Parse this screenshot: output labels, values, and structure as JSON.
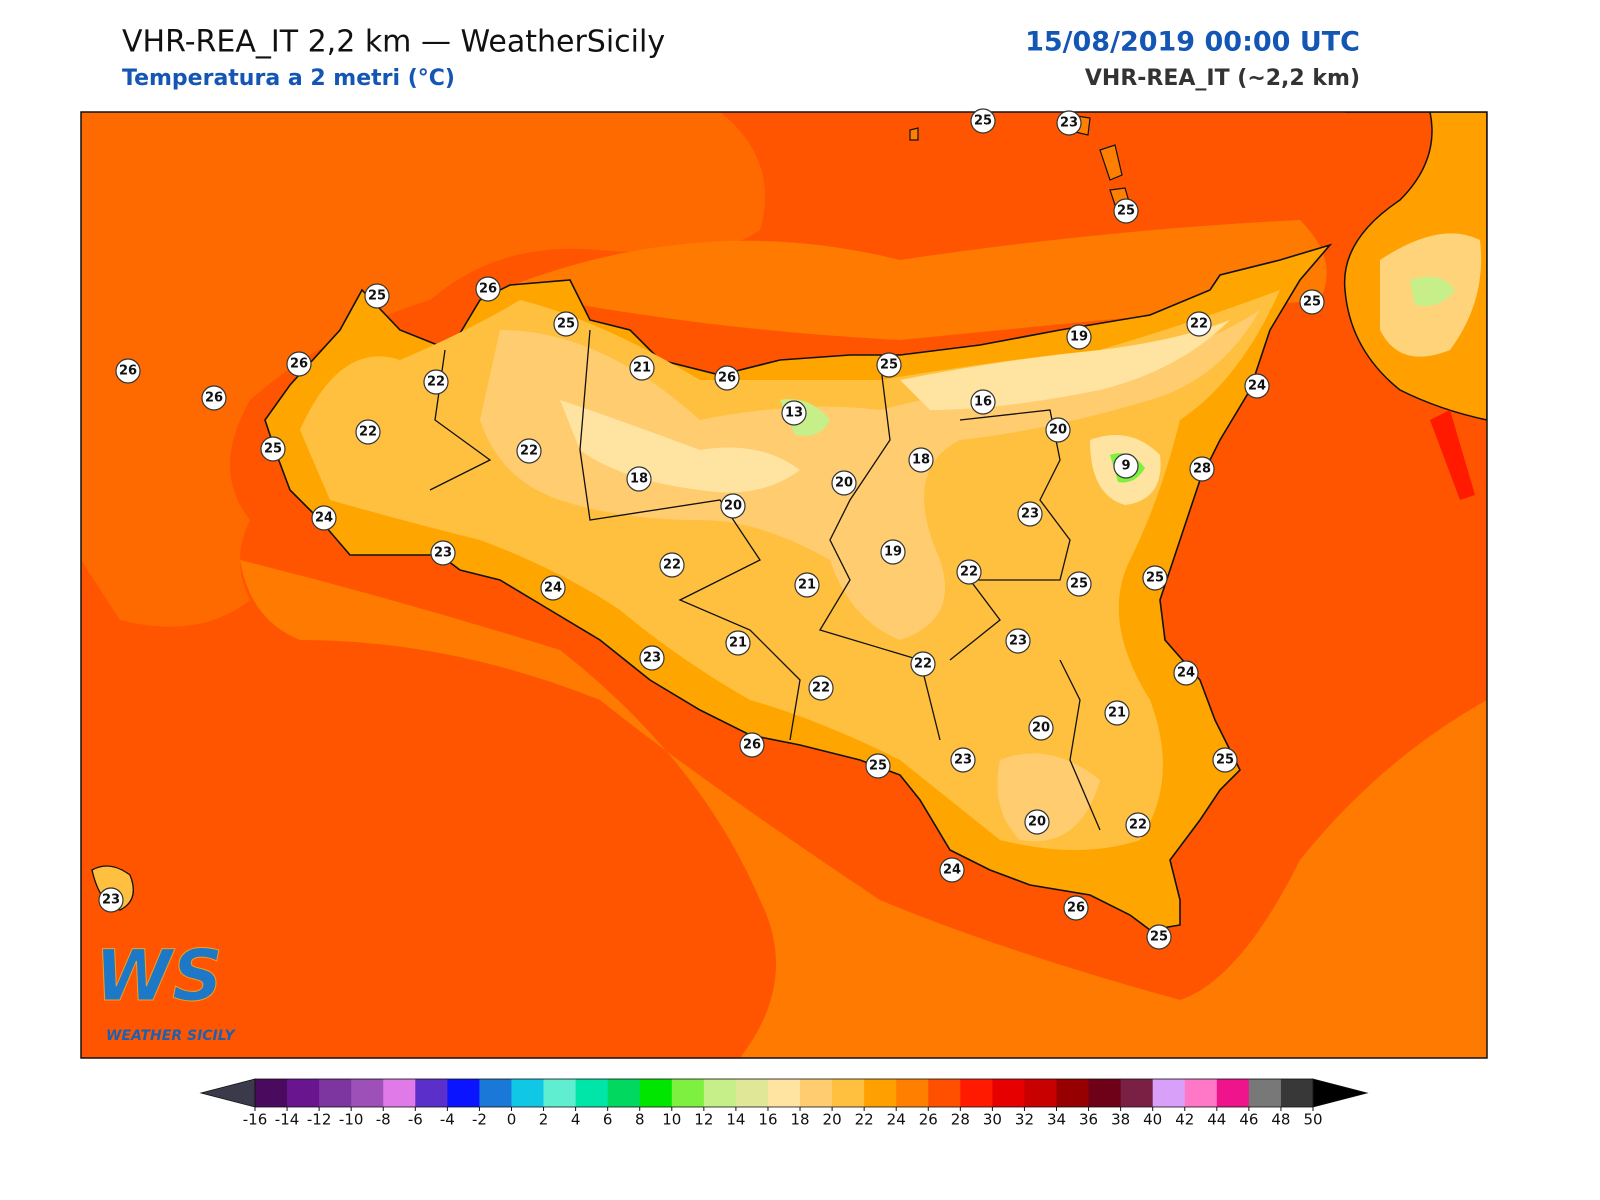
{
  "header": {
    "title": "VHR-REA_IT 2,2 km — WeatherSicily",
    "subtitle": "Temperatura a 2 metri (°C)",
    "datetime": "15/08/2019 00:00 UTC",
    "model": "VHR-REA_IT (~2,2 km)"
  },
  "logo": {
    "mark": "WS",
    "name": "WEATHER SICILY"
  },
  "stations": [
    {
      "value": 25
    },
    {
      "value": 23
    },
    {
      "value": 25
    },
    {
      "value": 25
    },
    {
      "value": 26
    },
    {
      "value": 25
    },
    {
      "value": 26
    },
    {
      "value": 26
    },
    {
      "value": 26
    },
    {
      "value": 22
    },
    {
      "value": 21
    },
    {
      "value": 26
    },
    {
      "value": 25
    },
    {
      "value": 19
    },
    {
      "value": 22
    },
    {
      "value": 25
    },
    {
      "value": 24
    },
    {
      "value": 13
    },
    {
      "value": 16
    },
    {
      "value": 20
    },
    {
      "value": 22
    },
    {
      "value": 25
    },
    {
      "value": 22
    },
    {
      "value": 18
    },
    {
      "value": 18
    },
    {
      "value": 20
    },
    {
      "value": 9
    },
    {
      "value": 28
    },
    {
      "value": 20
    },
    {
      "value": 23
    },
    {
      "value": 24
    },
    {
      "value": 23
    },
    {
      "value": 19
    },
    {
      "value": 22
    },
    {
      "value": 22
    },
    {
      "value": 25
    },
    {
      "value": 25
    },
    {
      "value": 24
    },
    {
      "value": 21
    },
    {
      "value": 23
    },
    {
      "value": 21
    },
    {
      "value": 23
    },
    {
      "value": 22
    },
    {
      "value": 24
    },
    {
      "value": 22
    },
    {
      "value": 21
    },
    {
      "value": 20
    },
    {
      "value": 26
    },
    {
      "value": 23
    },
    {
      "value": 25
    },
    {
      "value": 25
    },
    {
      "value": 20
    },
    {
      "value": 22
    },
    {
      "value": 24
    },
    {
      "value": 26
    },
    {
      "value": 25
    },
    {
      "value": 23
    }
  ],
  "colorbar": {
    "ticks": [
      -16,
      -14,
      -12,
      -10,
      -8,
      -6,
      -4,
      -2,
      0,
      2,
      4,
      6,
      8,
      10,
      12,
      14,
      16,
      18,
      20,
      22,
      24,
      26,
      28,
      30,
      32,
      34,
      36,
      38,
      40,
      42,
      44,
      46,
      48,
      50
    ],
    "colors": [
      "#4a0a5e",
      "#6a1590",
      "#7d35a0",
      "#9c50b8",
      "#e07ae8",
      "#5b2fc9",
      "#0a14ff",
      "#1a78d8",
      "#10c8e6",
      "#5fefd0",
      "#00e6a8",
      "#00d860",
      "#00e600",
      "#7ef040",
      "#c6ef8a",
      "#e0e898",
      "#ffe3a0",
      "#ffcc70",
      "#ffc040",
      "#ffa000",
      "#ff8000",
      "#ff5000",
      "#ff1a00",
      "#e60000",
      "#c80000",
      "#960000",
      "#6e0018",
      "#7a2045",
      "#d8a0f8",
      "#ff78c8",
      "#f0148c",
      "#787878",
      "#383838"
    ],
    "under_color": "#3a3a4a",
    "over_color": "#000000"
  }
}
